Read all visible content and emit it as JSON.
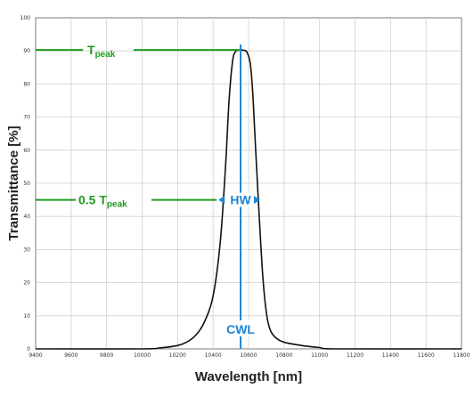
{
  "chart_data": {
    "type": "line",
    "xlabel": "Wavelength [nm]",
    "ylabel": "Transmittance [%]",
    "xlim": [
      9400,
      11800
    ],
    "ylim": [
      0,
      100
    ],
    "x_ticks": [
      "9400",
      "9600",
      "9800",
      "10000",
      "10200",
      "10400",
      "10600",
      "10800",
      "11000",
      "11200",
      "11400",
      "11600",
      "11800"
    ],
    "y_ticks": [
      "0",
      "10",
      "20",
      "30",
      "40",
      "50",
      "60",
      "70",
      "80",
      "90",
      "100"
    ],
    "grid": true,
    "series": [
      {
        "color": "#111111",
        "x": [
          9400,
          10000,
          10100,
          10200,
          10250,
          10300,
          10350,
          10400,
          10440,
          10470,
          10490,
          10510,
          10525,
          10540,
          10555,
          10570,
          10590,
          10610,
          10625,
          10640,
          10660,
          10680,
          10700,
          10720,
          10750,
          10800,
          10900,
          11000,
          11100,
          11800
        ],
        "y": [
          0,
          0,
          0.3,
          1,
          2,
          4,
          8,
          16,
          32,
          55,
          75,
          87,
          89.7,
          90.2,
          90.3,
          90.2,
          89.7,
          86,
          76,
          60,
          40,
          22,
          11,
          6,
          3.5,
          2,
          1,
          0.4,
          0,
          0
        ]
      }
    ],
    "annotations": {
      "t_peak": {
        "label_main": "T",
        "label_sub": "peak",
        "y": 90.3,
        "x_end": 10555,
        "color": "#1f9a1f"
      },
      "half_peak": {
        "label_main": "0.5 T",
        "label_sub": "peak",
        "y": 45,
        "color": "#1f9a1f"
      },
      "hw": {
        "label": "HW",
        "y": 45,
        "x_left": 10430,
        "x_right": 10665,
        "color": "#1a86d8"
      },
      "cwl": {
        "label": "CWL",
        "x": 10555,
        "color": "#1a86d8"
      }
    }
  }
}
